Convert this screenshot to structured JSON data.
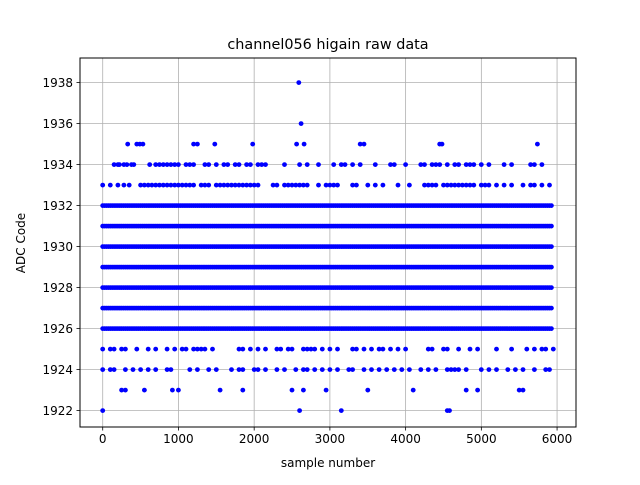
{
  "chart_data": {
    "type": "scatter",
    "title": "channel056 higain raw data",
    "xlabel": "sample number",
    "ylabel": "ADC Code",
    "xlim": [
      -300,
      6250
    ],
    "ylim": [
      1921.2,
      1939.2
    ],
    "xticks": [
      0,
      1000,
      2000,
      3000,
      4000,
      5000,
      6000
    ],
    "yticks": [
      1922,
      1924,
      1926,
      1928,
      1930,
      1932,
      1934,
      1936,
      1938
    ],
    "grid": true,
    "marker_color": "#0000ff",
    "series": [
      {
        "dense_levels": [
          1926,
          1927,
          1928,
          1929,
          1930,
          1931,
          1932
        ],
        "x_range": [
          0,
          5930
        ],
        "sparse_points": {
          "1938": [
            2590
          ],
          "1936": [
            2620
          ],
          "1935": [
            330,
            450,
            490,
            530,
            1200,
            1250,
            1480,
            1980,
            2560,
            2660,
            3400,
            3450,
            4450,
            4480,
            5740
          ],
          "1934": [
            150,
            200,
            220,
            280,
            320,
            380,
            410,
            620,
            700,
            750,
            800,
            850,
            900,
            950,
            1000,
            1100,
            1150,
            1200,
            1350,
            1400,
            1500,
            1600,
            1650,
            1750,
            1800,
            1900,
            1950,
            2050,
            2100,
            2150,
            2400,
            2600,
            2700,
            2850,
            3050,
            3150,
            3200,
            3300,
            3400,
            3600,
            3800,
            3850,
            4000,
            4200,
            4250,
            4350,
            4400,
            4450,
            4550,
            4650,
            4700,
            4800,
            4850,
            4900,
            5000,
            5100,
            5300,
            5400,
            5650,
            5700,
            5800
          ],
          "1933": [
            0,
            100,
            200,
            280,
            350,
            500,
            550,
            600,
            650,
            700,
            750,
            800,
            850,
            900,
            950,
            1000,
            1050,
            1100,
            1150,
            1200,
            1300,
            1350,
            1400,
            1500,
            1550,
            1600,
            1650,
            1700,
            1750,
            1800,
            1850,
            1900,
            1950,
            2000,
            2050,
            2250,
            2300,
            2400,
            2450,
            2500,
            2550,
            2600,
            2650,
            2700,
            2850,
            2950,
            3000,
            3050,
            3100,
            3300,
            3350,
            3500,
            3600,
            3700,
            3900,
            4050,
            4250,
            4300,
            4350,
            4400,
            4500,
            4550,
            4600,
            4650,
            4700,
            4750,
            4800,
            4850,
            4900,
            5000,
            5050,
            5100,
            5200,
            5300,
            5400,
            5550,
            5650,
            5700,
            5800,
            5900
          ],
          "1925": [
            0,
            100,
            150,
            250,
            300,
            450,
            600,
            700,
            850,
            950,
            1050,
            1100,
            1200,
            1250,
            1300,
            1350,
            1450,
            1800,
            1850,
            1950,
            2050,
            2150,
            2300,
            2350,
            2450,
            2500,
            2650,
            2700,
            2750,
            2800,
            2900,
            3000,
            3100,
            3300,
            3350,
            3450,
            3550,
            3650,
            3700,
            3800,
            3900,
            4000,
            4300,
            4350,
            4500,
            4550,
            4700,
            4850,
            4950,
            5200,
            5400,
            5600,
            5700,
            5800,
            5850,
            5950
          ],
          "1924": [
            0,
            100,
            150,
            300,
            400,
            500,
            600,
            700,
            850,
            900,
            1150,
            1250,
            1400,
            1500,
            1700,
            1800,
            1850,
            2000,
            2050,
            2150,
            2300,
            2400,
            2550,
            2650,
            2700,
            2800,
            2900,
            3000,
            3100,
            3250,
            3300,
            3450,
            3550,
            3650,
            3750,
            3850,
            3950,
            4050,
            4200,
            4300,
            4400,
            4550,
            4600,
            4650,
            4700,
            4800,
            5000,
            5100,
            5200,
            5350,
            5450,
            5550,
            5700,
            5850,
            5900
          ],
          "1923": [
            250,
            300,
            550,
            920,
            1000,
            1550,
            1850,
            2500,
            2650,
            2950,
            3500,
            4100,
            4800,
            4950,
            5500,
            5550
          ],
          "1922": [
            0,
            2600,
            3150,
            4550,
            4580
          ]
        }
      }
    ]
  }
}
